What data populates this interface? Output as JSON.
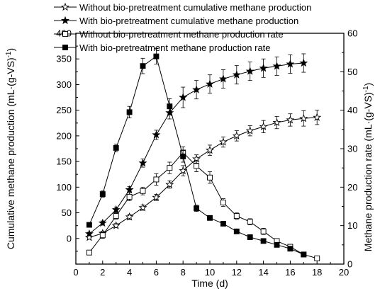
{
  "chart_data": {
    "type": "line",
    "xlabel": "Time (d)",
    "ylabel_left": "Cumulative methane production (mL·(g-VS)",
    "ylabel_left_sup": "-1",
    "ylabel_left_end": ")",
    "ylabel_right": "Methane production rate (mL·(g-VS)",
    "ylabel_right_sup": "-1",
    "ylabel_right_end": ")",
    "xlim": [
      0,
      20
    ],
    "ylim_left": [
      -50,
      400
    ],
    "ylim_right": [
      0,
      60
    ],
    "x_ticks": [
      "0",
      "2",
      "4",
      "6",
      "8",
      "10",
      "12",
      "14",
      "16",
      "18",
      "20"
    ],
    "y_left_ticks": [
      "0",
      "50",
      "100",
      "150",
      "200",
      "250",
      "300",
      "350",
      "400"
    ],
    "y_right_ticks": [
      "0",
      "10",
      "20",
      "30",
      "40",
      "50",
      "60"
    ],
    "legend_position": "top-left",
    "series": [
      {
        "name": "Without bio-pretreatment cumulative methane production",
        "axis": "left",
        "marker": "open-star",
        "x": [
          1,
          2,
          3,
          4,
          5,
          6,
          7,
          8,
          9,
          10,
          11,
          12,
          13,
          14,
          15,
          16,
          17,
          18
        ],
        "values": [
          2,
          10,
          25,
          42,
          60,
          80,
          105,
          132,
          155,
          172,
          188,
          200,
          210,
          218,
          226,
          231,
          234,
          236
        ],
        "err": [
          3,
          4,
          4,
          5,
          5,
          6,
          7,
          10,
          8,
          10,
          10,
          10,
          10,
          12,
          12,
          12,
          15,
          14
        ]
      },
      {
        "name": "With bio-pretreatment cumulative methane production",
        "axis": "left",
        "marker": "filled-star",
        "x": [
          1,
          2,
          3,
          4,
          5,
          6,
          7,
          8,
          9,
          10,
          11,
          12,
          13,
          14,
          15,
          16,
          17
        ],
        "values": [
          9,
          30,
          56,
          95,
          147,
          202,
          245,
          275,
          290,
          301,
          311,
          319,
          326,
          332,
          336,
          340,
          342
        ],
        "err": [
          3,
          4,
          5,
          6,
          8,
          9,
          12,
          20,
          18,
          18,
          18,
          18,
          18,
          18,
          18,
          18,
          18
        ]
      },
      {
        "name": "Without bio-pretreatment methane production rate",
        "axis": "right",
        "marker": "open-square",
        "x": [
          1,
          2,
          3,
          4,
          5,
          6,
          7,
          8,
          9,
          10,
          11,
          12,
          13,
          14,
          15,
          16,
          17,
          18
        ],
        "values": [
          3.0,
          7.5,
          12.5,
          17.5,
          19.0,
          22.0,
          25.0,
          29.0,
          25.5,
          22.5,
          16.0,
          12.5,
          11.0,
          8.5,
          6.0,
          4.5,
          2.5,
          1.5
        ],
        "err": [
          0.5,
          0.8,
          0.8,
          1.0,
          1.0,
          1.5,
          1.5,
          1.5,
          1.5,
          1.5,
          1.0,
          0.8,
          0.8,
          0.8,
          0.6,
          0.6,
          0.5,
          0.3
        ]
      },
      {
        "name": "With bio-pretreatment methane production rate",
        "axis": "right",
        "marker": "filled-square",
        "x": [
          1,
          2,
          3,
          4,
          5,
          6,
          7,
          8,
          9,
          10,
          11,
          12,
          13,
          14,
          15,
          16,
          17
        ],
        "values": [
          10.2,
          18.2,
          30.2,
          39.5,
          51.5,
          54.0,
          41.0,
          28.0,
          14.5,
          12.0,
          10.5,
          8.5,
          7.0,
          6.0,
          5.0,
          4.0,
          2.5
        ],
        "err": [
          0.5,
          0.8,
          1.0,
          1.5,
          2.0,
          2.0,
          2.0,
          1.5,
          0.8,
          0.5,
          0.5,
          0.5,
          0.5,
          0.5,
          0.5,
          0.4,
          0.3
        ]
      }
    ]
  }
}
